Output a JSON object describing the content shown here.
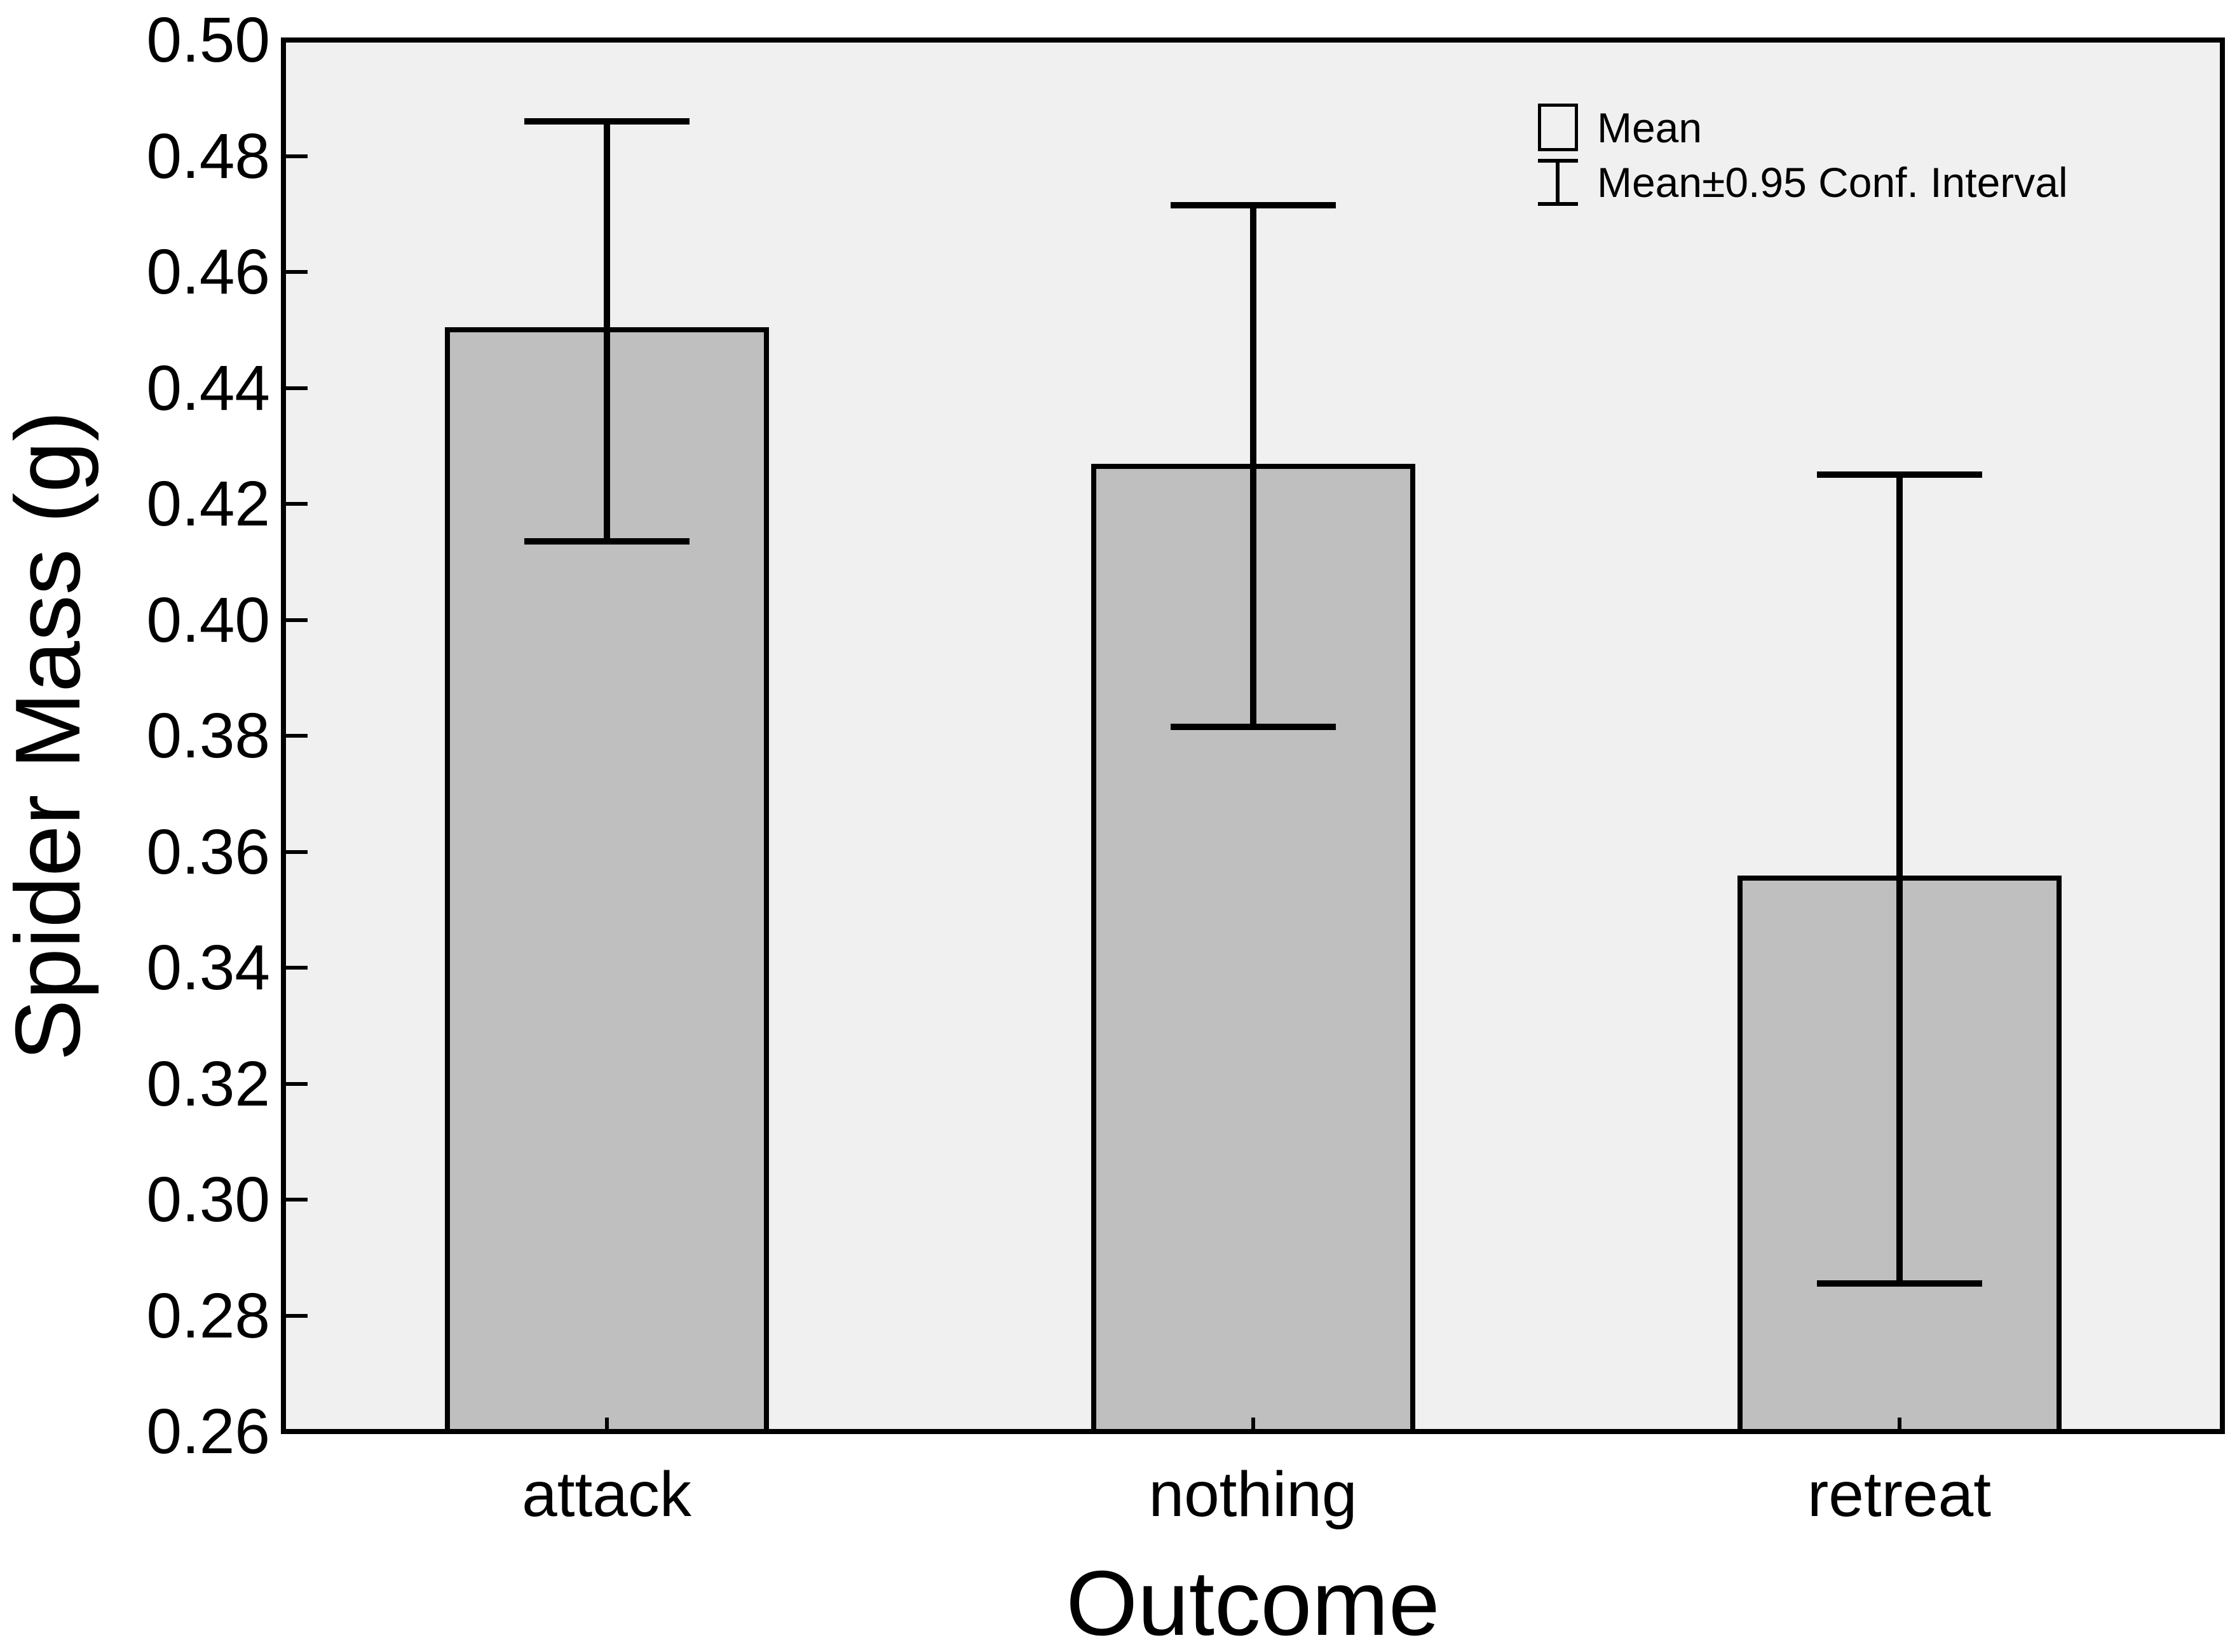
{
  "figure": {
    "background": "#ffffff"
  },
  "colors": {
    "bar_fill": "#bfbfbf",
    "plot_background": "#f0f0f0",
    "line": "#000000",
    "text": "#000000"
  },
  "y_axis": {
    "title": "Spider Mass (g)",
    "tick_labels": [
      "0.50",
      "0.48",
      "0.46",
      "0.44",
      "0.42",
      "0.40",
      "0.38",
      "0.36",
      "0.34",
      "0.32",
      "0.30",
      "0.28",
      "0.26"
    ]
  },
  "x_axis": {
    "title": "Outcome"
  },
  "legend": {
    "mean_label": "Mean",
    "ci_label": "Mean±0.95 Conf. Interval"
  },
  "chart_data": {
    "type": "bar",
    "title": "",
    "xlabel": "Outcome",
    "ylabel": "Spider Mass (g)",
    "categories": [
      "attack",
      "nothing",
      "retreat"
    ],
    "series": [
      {
        "name": "Mean",
        "values": [
          0.45,
          0.4265,
          0.3555
        ]
      }
    ],
    "error_bars": {
      "kind": "0.95 confidence interval",
      "low": [
        0.4135,
        0.3815,
        0.2855
      ],
      "high": [
        0.486,
        0.4715,
        0.425
      ]
    },
    "ylim": [
      0.26,
      0.5
    ],
    "ytick_step": 0.02,
    "grid": false,
    "legend_position": "top-right-inside",
    "bar_color": "#bfbfbf",
    "plot_bg_color": "#f0f0f0"
  }
}
